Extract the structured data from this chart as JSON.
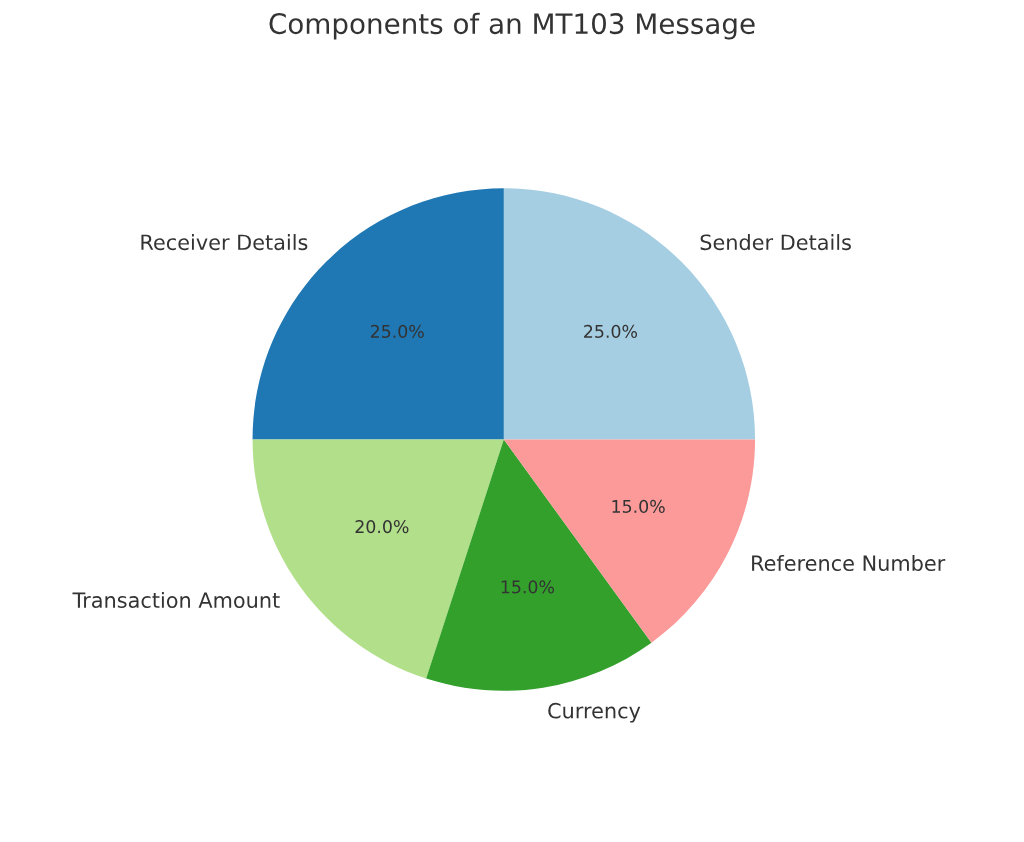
{
  "chart_data": {
    "type": "pie",
    "title": "Components of an MT103 Message",
    "categories": [
      "Sender Details",
      "Receiver Details",
      "Transaction Amount",
      "Currency",
      "Reference Number"
    ],
    "values": [
      25,
      25,
      20,
      15,
      15
    ],
    "value_labels": [
      "25.0%",
      "25.0%",
      "20.0%",
      "15.0%",
      "15.0%"
    ],
    "colors": [
      "#a6cee3",
      "#1f78b4",
      "#b2df8a",
      "#33a02c",
      "#fb9a99"
    ]
  }
}
